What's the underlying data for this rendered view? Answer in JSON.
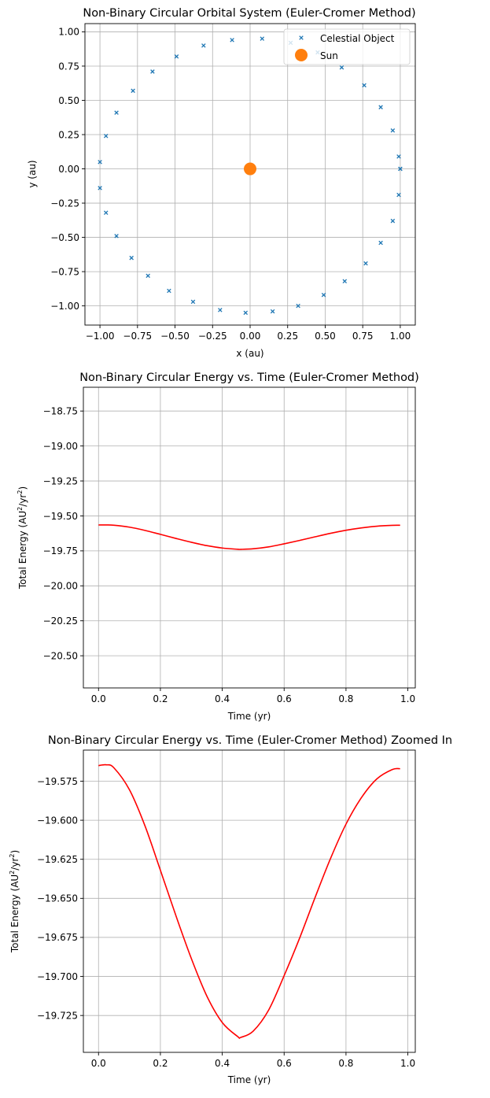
{
  "chart_data": [
    {
      "type": "scatter",
      "title": "Non-Binary Circular Orbital System (Euler-Cromer Method)",
      "xlabel": "x (au)",
      "ylabel": "y (au)",
      "xlim": [
        -1.1,
        1.1
      ],
      "ylim": [
        -1.14,
        1.06
      ],
      "xticks": [
        -1.0,
        -0.75,
        -0.5,
        -0.25,
        0.0,
        0.25,
        0.5,
        0.75,
        1.0
      ],
      "xtick_labels": [
        "−1.00",
        "−0.75",
        "−0.50",
        "−0.25",
        "0.00",
        "0.25",
        "0.50",
        "0.75",
        "1.00"
      ],
      "yticks": [
        1.0,
        0.75,
        0.5,
        0.25,
        0.0,
        -0.25,
        -0.5,
        -0.75,
        -1.0
      ],
      "ytick_labels": [
        "1.00",
        "0.75",
        "0.50",
        "0.25",
        "0.00",
        "−0.25",
        "−0.50",
        "−0.75",
        "−1.00"
      ],
      "grid": true,
      "legend": "top-right",
      "series": [
        {
          "name": "Celestial Object",
          "marker": "x",
          "color": "#1f77b4",
          "points": [
            [
              1.0,
              0.0
            ],
            [
              0.99,
              0.09
            ],
            [
              0.95,
              0.28
            ],
            [
              0.87,
              0.45
            ],
            [
              0.76,
              0.61
            ],
            [
              0.61,
              0.74
            ],
            [
              0.45,
              0.85
            ],
            [
              0.27,
              0.92
            ],
            [
              0.08,
              0.95
            ],
            [
              -0.12,
              0.94
            ],
            [
              -0.31,
              0.9
            ],
            [
              -0.49,
              0.82
            ],
            [
              -0.65,
              0.71
            ],
            [
              -0.78,
              0.57
            ],
            [
              -0.89,
              0.41
            ],
            [
              -0.96,
              0.24
            ],
            [
              -1.0,
              0.05
            ],
            [
              -1.0,
              -0.14
            ],
            [
              -0.96,
              -0.32
            ],
            [
              -0.89,
              -0.49
            ],
            [
              -0.79,
              -0.65
            ],
            [
              -0.68,
              -0.78
            ],
            [
              -0.54,
              -0.89
            ],
            [
              -0.38,
              -0.97
            ],
            [
              -0.2,
              -1.03
            ],
            [
              -0.03,
              -1.05
            ],
            [
              0.15,
              -1.04
            ],
            [
              0.32,
              -1.0
            ],
            [
              0.49,
              -0.92
            ],
            [
              0.63,
              -0.82
            ],
            [
              0.77,
              -0.69
            ],
            [
              0.87,
              -0.54
            ],
            [
              0.95,
              -0.38
            ],
            [
              0.99,
              -0.19
            ],
            [
              1.0,
              0.0
            ]
          ]
        },
        {
          "name": "Sun",
          "marker": "o",
          "color": "#ff7f0e",
          "points": [
            [
              0.0,
              0.0
            ]
          ]
        }
      ]
    },
    {
      "type": "line",
      "title": "Non-Binary Circular Energy vs. Time (Euler-Cromer Method)",
      "xlabel": "Time (yr)",
      "ylabel_main": "Total Energy (AU",
      "ylabel_mid": "/yr",
      "ylabel_end": ")",
      "ylabel_sup": "2",
      "xlim": [
        -0.049,
        1.024
      ],
      "ylim": [
        -20.73,
        -18.58
      ],
      "xticks": [
        0.0,
        0.2,
        0.4,
        0.6,
        0.8,
        1.0
      ],
      "xtick_labels": [
        "0.0",
        "0.2",
        "0.4",
        "0.6",
        "0.8",
        "1.0"
      ],
      "yticks": [
        -18.75,
        -19.0,
        -19.25,
        -19.5,
        -19.75,
        -20.0,
        -20.25,
        -20.5
      ],
      "ytick_labels": [
        "−18.75",
        "−19.00",
        "−19.25",
        "−19.50",
        "−19.75",
        "−20.00",
        "−20.25",
        "−20.50"
      ],
      "grid": true,
      "series": [
        {
          "color": "#ff0000",
          "x": [
            0.0,
            0.025,
            0.05,
            0.1,
            0.15,
            0.2,
            0.25,
            0.3,
            0.35,
            0.4,
            0.45,
            0.46,
            0.5,
            0.55,
            0.6,
            0.65,
            0.7,
            0.75,
            0.8,
            0.85,
            0.9,
            0.95,
            0.975
          ],
          "y": [
            -19.565,
            -19.5645,
            -19.5665,
            -19.5805,
            -19.6035,
            -19.632,
            -19.661,
            -19.6885,
            -19.7125,
            -19.7295,
            -19.7385,
            -19.739,
            -19.735,
            -19.7215,
            -19.6995,
            -19.6755,
            -19.6495,
            -19.6245,
            -19.6025,
            -19.5855,
            -19.5735,
            -19.5675,
            -19.567
          ]
        }
      ]
    },
    {
      "type": "line",
      "title": "Non-Binary Circular Energy vs. Time (Euler-Cromer Method) Zoomed In",
      "xlabel": "Time (yr)",
      "ylabel_main": "Total Energy (AU",
      "ylabel_mid": "/yr",
      "ylabel_end": ")",
      "ylabel_sup": "2",
      "xlim": [
        -0.049,
        1.024
      ],
      "ylim": [
        -19.7486,
        -19.5551
      ],
      "xticks": [
        0.0,
        0.2,
        0.4,
        0.6,
        0.8,
        1.0
      ],
      "xtick_labels": [
        "0.0",
        "0.2",
        "0.4",
        "0.6",
        "0.8",
        "1.0"
      ],
      "yticks": [
        -19.575,
        -19.6,
        -19.625,
        -19.65,
        -19.675,
        -19.7,
        -19.725
      ],
      "ytick_labels": [
        "−19.575",
        "−19.600",
        "−19.625",
        "−19.650",
        "−19.675",
        "−19.700",
        "−19.725"
      ],
      "grid": true,
      "series": [
        {
          "color": "#ff0000",
          "x": [
            0.0,
            0.025,
            0.05,
            0.1,
            0.15,
            0.2,
            0.25,
            0.3,
            0.35,
            0.4,
            0.45,
            0.46,
            0.5,
            0.55,
            0.6,
            0.65,
            0.7,
            0.75,
            0.8,
            0.85,
            0.9,
            0.95,
            0.975
          ],
          "y": [
            -19.565,
            -19.5645,
            -19.5665,
            -19.5805,
            -19.6035,
            -19.632,
            -19.661,
            -19.6885,
            -19.7125,
            -19.7295,
            -19.7385,
            -19.739,
            -19.735,
            -19.7215,
            -19.6995,
            -19.6755,
            -19.6495,
            -19.6245,
            -19.6025,
            -19.5855,
            -19.5735,
            -19.5675,
            -19.567
          ]
        }
      ]
    }
  ]
}
